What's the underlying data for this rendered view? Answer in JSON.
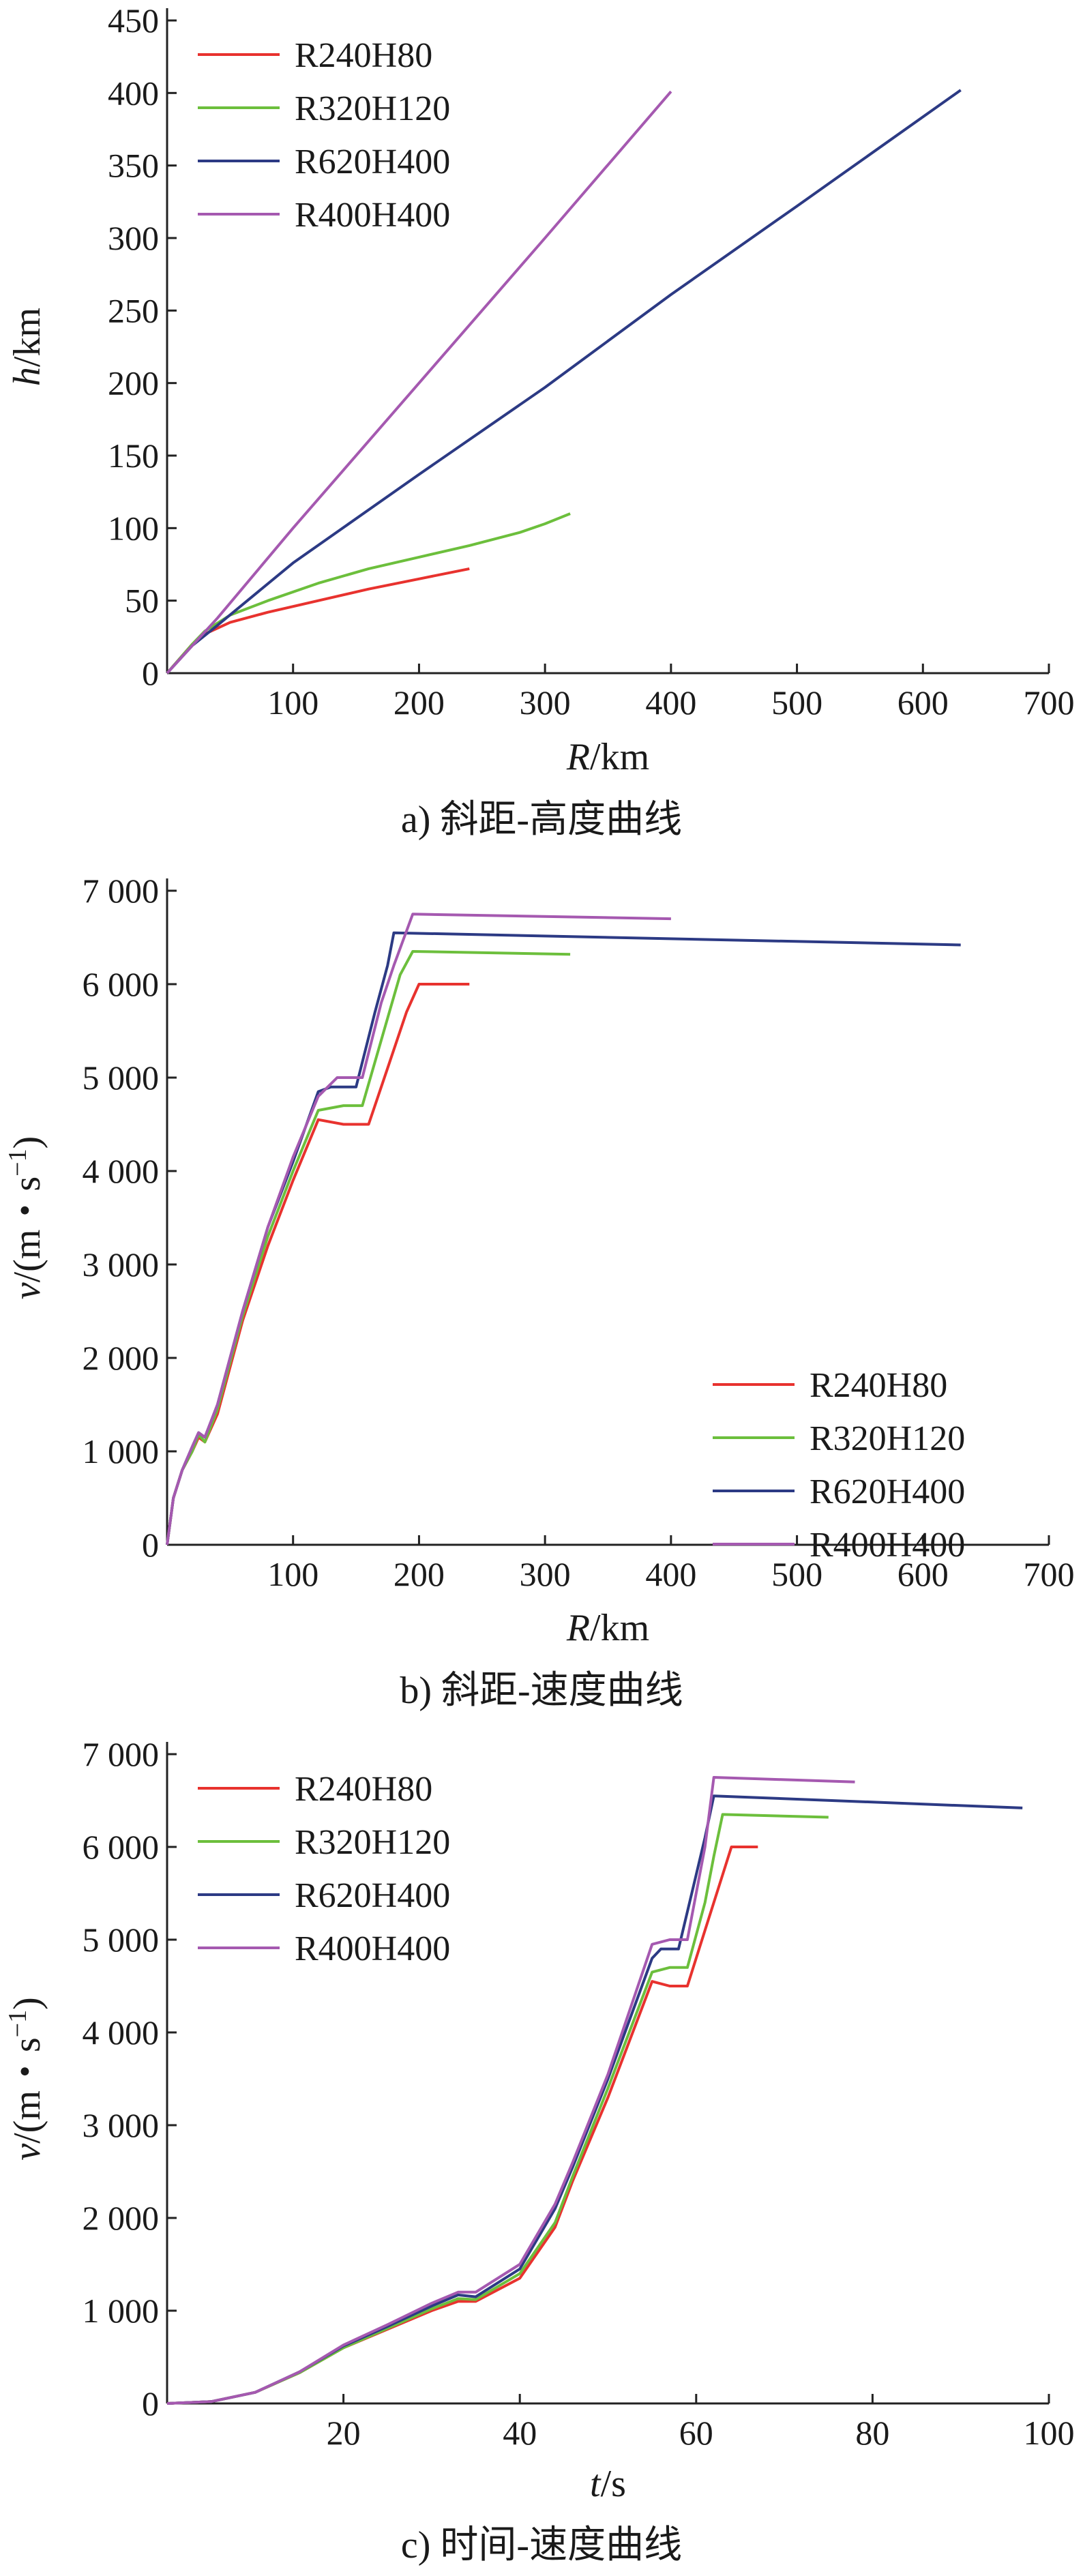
{
  "figure": {
    "panels": [
      {
        "caption": "a) 斜距-高度曲线",
        "xlabel_var": "R",
        "xlabel_unit": "/km",
        "ylabel_var": "h",
        "ylabel_unit": "/km",
        "ylabel_sup": "",
        "legend_position": "top-left"
      },
      {
        "caption": "b) 斜距-速度曲线",
        "xlabel_var": "R",
        "xlabel_unit": "/km",
        "ylabel_var": "v",
        "ylabel_unit": "/(m・s",
        "ylabel_sup": "−1",
        "ylabel_close": ")",
        "legend_position": "bottom-right"
      },
      {
        "caption": "c) 时间-速度曲线",
        "xlabel_var": "t",
        "xlabel_unit": "/s",
        "ylabel_var": "v",
        "ylabel_unit": "/(m・s",
        "ylabel_sup": "−1",
        "ylabel_close": ")",
        "legend_position": "top-left"
      }
    ]
  },
  "chart_data": [
    {
      "type": "line",
      "xlabel": "R/km",
      "ylabel": "h/km",
      "xlim": [
        0,
        700
      ],
      "ylim": [
        0,
        450
      ],
      "xticks": [
        100,
        200,
        300,
        400,
        500,
        600,
        700
      ],
      "xtick_labels": [
        "100",
        "200",
        "300",
        "400",
        "500",
        "600",
        "700"
      ],
      "yticks": [
        0,
        50,
        100,
        150,
        200,
        250,
        300,
        350,
        400,
        450
      ],
      "ytick_labels": [
        "0",
        "50",
        "100",
        "150",
        "200",
        "250",
        "300",
        "350",
        "400",
        "450"
      ],
      "grid": false,
      "legend": "top-left",
      "series": [
        {
          "name": "R240H80",
          "color": "#e8322e",
          "points": [
            [
              0,
              0
            ],
            [
              10,
              10
            ],
            [
              20,
              20
            ],
            [
              30,
              27
            ],
            [
              50,
              35
            ],
            [
              80,
              42
            ],
            [
              120,
              50
            ],
            [
              160,
              58
            ],
            [
              200,
              65
            ],
            [
              240,
              72
            ]
          ]
        },
        {
          "name": "R320H120",
          "color": "#6cbf3c",
          "points": [
            [
              0,
              0
            ],
            [
              10,
              10
            ],
            [
              20,
              20
            ],
            [
              30,
              29
            ],
            [
              50,
              40
            ],
            [
              80,
              50
            ],
            [
              120,
              62
            ],
            [
              160,
              72
            ],
            [
              200,
              80
            ],
            [
              240,
              88
            ],
            [
              280,
              97
            ],
            [
              300,
              103
            ],
            [
              320,
              110
            ]
          ]
        },
        {
          "name": "R620H400",
          "color": "#2c3a84",
          "points": [
            [
              0,
              0
            ],
            [
              20,
              19
            ],
            [
              40,
              33
            ],
            [
              100,
              76
            ],
            [
              200,
              137
            ],
            [
              300,
              197
            ],
            [
              400,
              261
            ],
            [
              500,
              322
            ],
            [
              630,
              402
            ]
          ]
        },
        {
          "name": "R400H400",
          "color": "#a559b0",
          "points": [
            [
              0,
              0
            ],
            [
              20,
              19
            ],
            [
              40,
              38
            ],
            [
              100,
              100
            ],
            [
              200,
              200
            ],
            [
              300,
              300
            ],
            [
              400,
              401
            ]
          ]
        }
      ]
    },
    {
      "type": "line",
      "xlabel": "R/km",
      "ylabel": "v/(m·s⁻¹)",
      "xlim": [
        0,
        700
      ],
      "ylim": [
        0,
        7000
      ],
      "xticks": [
        100,
        200,
        300,
        400,
        500,
        600,
        700
      ],
      "xtick_labels": [
        "100",
        "200",
        "300",
        "400",
        "500",
        "600",
        "700"
      ],
      "yticks": [
        0,
        1000,
        2000,
        3000,
        4000,
        5000,
        6000,
        7000
      ],
      "ytick_labels": [
        "0",
        "1 000",
        "2 000",
        "3 000",
        "4 000",
        "5 000",
        "6 000",
        "7 000"
      ],
      "grid": false,
      "legend": "bottom-right",
      "series": [
        {
          "name": "R240H80",
          "color": "#e8322e",
          "points": [
            [
              0,
              0
            ],
            [
              5,
              500
            ],
            [
              12,
              800
            ],
            [
              20,
              1000
            ],
            [
              25,
              1150
            ],
            [
              30,
              1100
            ],
            [
              40,
              1400
            ],
            [
              60,
              2400
            ],
            [
              80,
              3200
            ],
            [
              100,
              3900
            ],
            [
              120,
              4550
            ],
            [
              140,
              4500
            ],
            [
              160,
              4500
            ],
            [
              175,
              5100
            ],
            [
              190,
              5700
            ],
            [
              200,
              6000
            ],
            [
              240,
              6000
            ]
          ]
        },
        {
          "name": "R320H120",
          "color": "#6cbf3c",
          "points": [
            [
              0,
              0
            ],
            [
              5,
              500
            ],
            [
              12,
              800
            ],
            [
              20,
              1000
            ],
            [
              25,
              1180
            ],
            [
              30,
              1100
            ],
            [
              40,
              1450
            ],
            [
              60,
              2450
            ],
            [
              80,
              3300
            ],
            [
              100,
              4000
            ],
            [
              120,
              4650
            ],
            [
              140,
              4700
            ],
            [
              155,
              4700
            ],
            [
              170,
              5400
            ],
            [
              185,
              6100
            ],
            [
              195,
              6350
            ],
            [
              320,
              6320
            ]
          ]
        },
        {
          "name": "R620H400",
          "color": "#2c3a84",
          "points": [
            [
              0,
              0
            ],
            [
              5,
              500
            ],
            [
              12,
              800
            ],
            [
              20,
              1050
            ],
            [
              25,
              1200
            ],
            [
              30,
              1150
            ],
            [
              40,
              1500
            ],
            [
              60,
              2500
            ],
            [
              80,
              3400
            ],
            [
              100,
              4100
            ],
            [
              120,
              4850
            ],
            [
              130,
              4900
            ],
            [
              150,
              4900
            ],
            [
              165,
              5700
            ],
            [
              175,
              6200
            ],
            [
              180,
              6550
            ],
            [
              630,
              6420
            ]
          ]
        },
        {
          "name": "R400H400",
          "color": "#a559b0",
          "points": [
            [
              0,
              0
            ],
            [
              5,
              500
            ],
            [
              12,
              800
            ],
            [
              20,
              1050
            ],
            [
              25,
              1200
            ],
            [
              30,
              1150
            ],
            [
              40,
              1500
            ],
            [
              60,
              2500
            ],
            [
              80,
              3400
            ],
            [
              100,
              4150
            ],
            [
              120,
              4800
            ],
            [
              135,
              5000
            ],
            [
              155,
              5000
            ],
            [
              170,
              5800
            ],
            [
              180,
              6200
            ],
            [
              195,
              6750
            ],
            [
              400,
              6700
            ]
          ]
        }
      ]
    },
    {
      "type": "line",
      "xlabel": "t/s",
      "ylabel": "v/(m·s⁻¹)",
      "xlim": [
        0,
        100
      ],
      "ylim": [
        0,
        7000
      ],
      "xticks": [
        20,
        40,
        60,
        80,
        100
      ],
      "xtick_labels": [
        "20",
        "40",
        "60",
        "80",
        "100"
      ],
      "yticks": [
        0,
        1000,
        2000,
        3000,
        4000,
        5000,
        6000,
        7000
      ],
      "ytick_labels": [
        "0",
        "1 000",
        "2 000",
        "3 000",
        "4 000",
        "5 000",
        "6 000",
        "7 000"
      ],
      "grid": false,
      "legend": "top-left",
      "series": [
        {
          "name": "R240H80",
          "color": "#e8322e",
          "points": [
            [
              0,
              0
            ],
            [
              5,
              20
            ],
            [
              10,
              120
            ],
            [
              15,
              330
            ],
            [
              20,
              600
            ],
            [
              25,
              800
            ],
            [
              30,
              1000
            ],
            [
              33,
              1100
            ],
            [
              35,
              1100
            ],
            [
              40,
              1350
            ],
            [
              44,
              1900
            ],
            [
              46,
              2400
            ],
            [
              50,
              3300
            ],
            [
              55,
              4550
            ],
            [
              57,
              4500
            ],
            [
              59,
              4500
            ],
            [
              61,
              5100
            ],
            [
              63,
              5700
            ],
            [
              64,
              6000
            ],
            [
              67,
              6000
            ]
          ]
        },
        {
          "name": "R320H120",
          "color": "#6cbf3c",
          "points": [
            [
              0,
              0
            ],
            [
              5,
              20
            ],
            [
              10,
              120
            ],
            [
              15,
              330
            ],
            [
              20,
              600
            ],
            [
              25,
              810
            ],
            [
              30,
              1020
            ],
            [
              33,
              1130
            ],
            [
              35,
              1120
            ],
            [
              40,
              1400
            ],
            [
              44,
              1950
            ],
            [
              46,
              2450
            ],
            [
              50,
              3400
            ],
            [
              55,
              4650
            ],
            [
              57,
              4700
            ],
            [
              59,
              4700
            ],
            [
              61,
              5400
            ],
            [
              62,
              5900
            ],
            [
              63,
              6350
            ],
            [
              75,
              6320
            ]
          ]
        },
        {
          "name": "R620H400",
          "color": "#2c3a84",
          "points": [
            [
              0,
              0
            ],
            [
              5,
              20
            ],
            [
              10,
              120
            ],
            [
              15,
              340
            ],
            [
              20,
              620
            ],
            [
              25,
              830
            ],
            [
              30,
              1050
            ],
            [
              33,
              1170
            ],
            [
              35,
              1150
            ],
            [
              40,
              1450
            ],
            [
              44,
              2100
            ],
            [
              46,
              2550
            ],
            [
              50,
              3500
            ],
            [
              55,
              4800
            ],
            [
              56,
              4900
            ],
            [
              58,
              4900
            ],
            [
              60,
              5700
            ],
            [
              61,
              6100
            ],
            [
              62,
              6550
            ],
            [
              97,
              6420
            ]
          ]
        },
        {
          "name": "R400H400",
          "color": "#a559b0",
          "points": [
            [
              0,
              0
            ],
            [
              5,
              20
            ],
            [
              10,
              120
            ],
            [
              15,
              340
            ],
            [
              20,
              630
            ],
            [
              25,
              850
            ],
            [
              30,
              1080
            ],
            [
              33,
              1200
            ],
            [
              35,
              1200
            ],
            [
              40,
              1500
            ],
            [
              44,
              2150
            ],
            [
              46,
              2600
            ],
            [
              50,
              3550
            ],
            [
              55,
              4950
            ],
            [
              57,
              5000
            ],
            [
              59,
              5000
            ],
            [
              61,
              6000
            ],
            [
              62,
              6750
            ],
            [
              78,
              6700
            ]
          ]
        }
      ]
    }
  ]
}
